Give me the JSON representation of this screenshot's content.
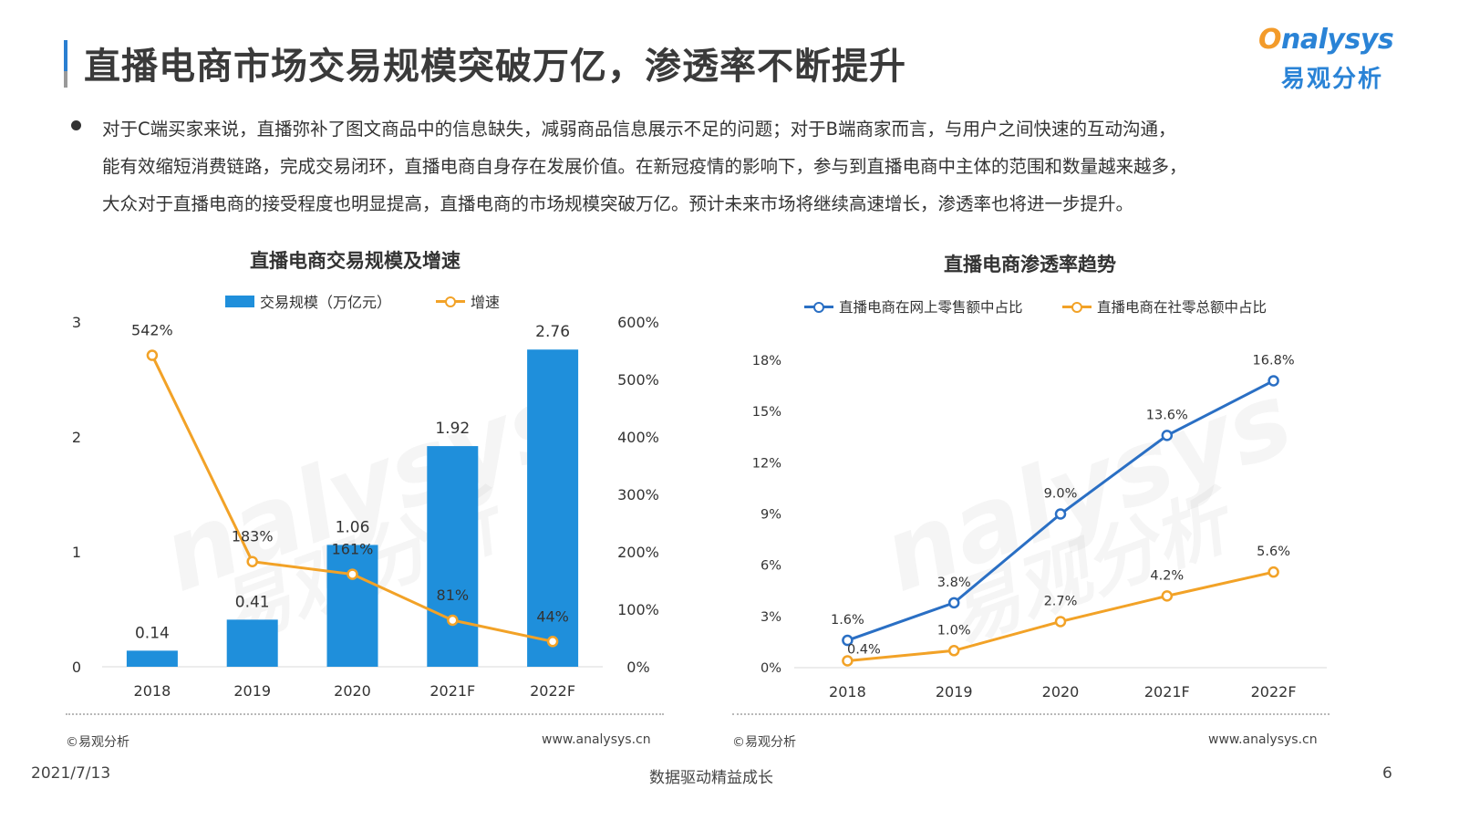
{
  "page_title": "直播电商市场交易规模突破万亿，渗透率不断提升",
  "logo": {
    "en_prefix": "O",
    "en_rest": "nalysys",
    "cn": "易观分析"
  },
  "bullet": {
    "line1": "对于C端买家来说，直播弥补了图文商品中的信息缺失，减弱商品信息展示不足的问题；对于B端商家而言，与用户之间快速的互动沟通，",
    "line2": "能有效缩短消费链路，完成交易闭环，直播电商自身存在发展价值。在新冠疫情的影响下，参与到直播电商中主体的范围和数量越来越多，",
    "line3": "大众对于直播电商的接受程度也明显提高，直播电商的市场规模突破万亿。预计未来市场将继续高速增长，渗透率也将进一步提升。"
  },
  "watermark": {
    "en": "nalysys",
    "cn": "易观分析"
  },
  "left_chart": {
    "source": "©易观分析",
    "site": "www.analysys.cn"
  },
  "right_chart": {
    "source": "©易观分析",
    "site": "www.analysys.cn"
  },
  "footer": {
    "date": "2021/7/13",
    "slogan": "数据驱动精益成长",
    "page": "6"
  },
  "colors": {
    "bar": "#1f8fdb",
    "orange": "#f2a227",
    "blue": "#2a6fc4",
    "accent": "#2a7fd1"
  },
  "chart_data": [
    {
      "type": "bar",
      "title": "直播电商交易规模及增速",
      "categories": [
        "2018",
        "2019",
        "2020",
        "2021F",
        "2022F"
      ],
      "series": [
        {
          "name": "交易规模（万亿元）",
          "type": "bar",
          "axis": "left",
          "values": [
            0.14,
            0.41,
            1.06,
            1.92,
            2.76
          ],
          "labels": [
            "0.14",
            "0.41",
            "1.06",
            "1.92",
            "2.76"
          ]
        },
        {
          "name": "增速",
          "type": "line",
          "axis": "right",
          "values": [
            542,
            183,
            161,
            81,
            44
          ],
          "labels": [
            "542%",
            "183%",
            "161%",
            "81%",
            "44%"
          ]
        }
      ],
      "y_left": {
        "ylim": [
          0,
          3
        ],
        "ticks": [
          "0",
          "1",
          "2",
          "3"
        ]
      },
      "y_right": {
        "ylim": [
          0,
          600
        ],
        "ticks": [
          "0%",
          "100%",
          "200%",
          "300%",
          "400%",
          "500%",
          "600%"
        ]
      },
      "legend_position": "top-center",
      "grid": false
    },
    {
      "type": "line",
      "title": "直播电商渗透率趋势",
      "categories": [
        "2018",
        "2019",
        "2020",
        "2021F",
        "2022F"
      ],
      "series": [
        {
          "name": "直播电商在网上零售额中占比",
          "values": [
            1.6,
            3.8,
            9.0,
            13.6,
            16.8
          ],
          "labels": [
            "1.6%",
            "3.8%",
            "9.0%",
            "13.6%",
            "16.8%"
          ]
        },
        {
          "name": "直播电商在社零总额中占比",
          "values": [
            0.4,
            1.0,
            2.7,
            4.2,
            5.6
          ],
          "labels": [
            "0.4%",
            "1.0%",
            "2.7%",
            "4.2%",
            "5.6%"
          ]
        }
      ],
      "ylim": [
        0,
        18
      ],
      "yticks": [
        "0%",
        "3%",
        "6%",
        "9%",
        "12%",
        "15%",
        "18%"
      ],
      "legend_position": "top-center",
      "grid": false
    }
  ]
}
